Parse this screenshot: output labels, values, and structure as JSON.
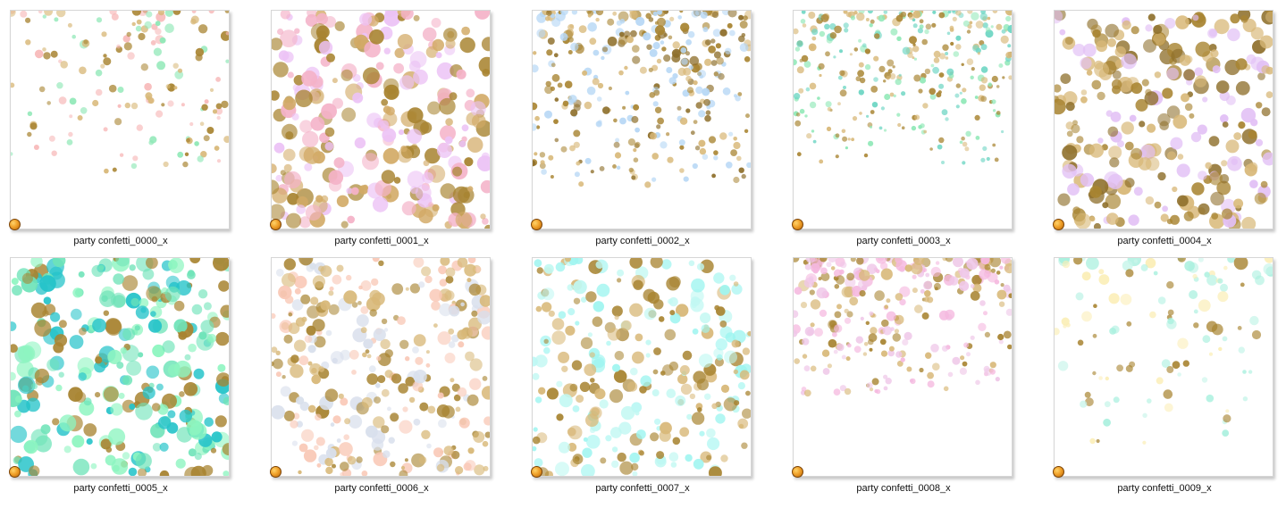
{
  "files": [
    {
      "name": "party confetti_0000_x",
      "colors": [
        "#f7b9b9",
        "#8ee8b6",
        "#a88431",
        "#d8b878"
      ]
    },
    {
      "name": "party confetti_0001_x",
      "colors": [
        "#ecc2f5",
        "#a88431",
        "#f4b2c8",
        "#d2aa66"
      ]
    },
    {
      "name": "party confetti_0002_x",
      "colors": [
        "#b6d7f5",
        "#a88431",
        "#d8b878",
        "#8e6f2b"
      ]
    },
    {
      "name": "party confetti_0003_x",
      "colors": [
        "#8ee8b6",
        "#a88431",
        "#d8b878",
        "#6fd6c4"
      ]
    },
    {
      "name": "party confetti_0004_x",
      "colors": [
        "#e2c0f5",
        "#a88431",
        "#d8b878",
        "#8e6f2b"
      ]
    },
    {
      "name": "party confetti_0005_x",
      "colors": [
        "#8df5c0",
        "#24c3c9",
        "#a88431",
        "#6ee3b8"
      ]
    },
    {
      "name": "party confetti_0006_x",
      "colors": [
        "#f9c8b6",
        "#a88431",
        "#d8dfec",
        "#d8b878"
      ]
    },
    {
      "name": "party confetti_0007_x",
      "colors": [
        "#9ef5f0",
        "#a88431",
        "#d8b878",
        "#c0f8f2"
      ]
    },
    {
      "name": "party confetti_0008_x",
      "colors": [
        "#f5b8df",
        "#a88431",
        "#d8b878",
        "#efc7e8"
      ]
    },
    {
      "name": "party confetti_0009_x",
      "colors": [
        "#a8f0de",
        "#fbeeb6",
        "#a88431",
        "#c8f5ea"
      ]
    }
  ],
  "icons": {
    "file_badge": "orange-ball-icon"
  }
}
